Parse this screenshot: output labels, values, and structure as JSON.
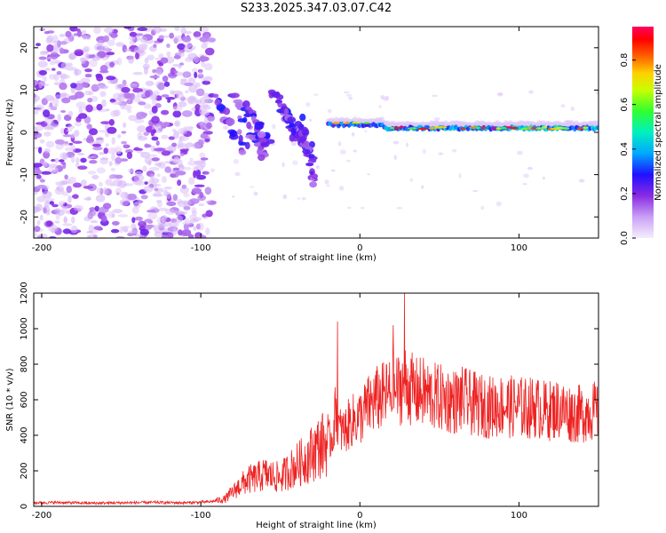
{
  "title": "S233.2025.347.03.07.C42",
  "chart_data": [
    {
      "type": "heatmap",
      "title": "S233.2025.347.03.07.C42",
      "xlabel": "Height of straight line (km)",
      "ylabel": "Frequency (Hz)",
      "xlim": [
        -205,
        150
      ],
      "ylim": [
        -25,
        25
      ],
      "xticks": [
        -200,
        -100,
        0,
        100
      ],
      "yticks": [
        20,
        10,
        0,
        -10,
        -20
      ],
      "colorbar": {
        "label": "Normalized spectral amplitude",
        "range": [
          0.0,
          0.95
        ],
        "ticks": [
          0.0,
          0.2,
          0.4,
          0.6,
          0.8
        ],
        "tick_labels": [
          "0.0",
          "0.2",
          "0.4",
          "0.6",
          "0.8"
        ],
        "colormap": [
          "#ffffff",
          "#d8b8f8",
          "#8a2be2",
          "#3010e0",
          "#0000ff",
          "#00c0ff",
          "#00ff80",
          "#80ff00",
          "#ffff00",
          "#ff8000",
          "#ff0000",
          "#ff0080"
        ]
      },
      "features": [
        {
          "name": "diffuse noise",
          "x_range": [
            -205,
            -93
          ],
          "freq_range": [
            -25,
            25
          ],
          "amplitude": [
            0.0,
            0.15
          ]
        },
        {
          "name": "dispersive arrivals",
          "x_range": [
            -93,
            -25
          ],
          "freq_range": [
            -12,
            10
          ],
          "amplitude": [
            0.1,
            0.3
          ]
        },
        {
          "name": "narrow band signal",
          "x_range": [
            -20,
            150
          ],
          "freq_center": 1,
          "freq_halfwidth": 1,
          "amplitude": [
            0.3,
            0.95
          ]
        }
      ]
    },
    {
      "type": "line",
      "xlabel": "Height of straight line (km)",
      "ylabel": "SNR (10 * v/v)",
      "xlim": [
        -205,
        150
      ],
      "ylim": [
        0,
        1200
      ],
      "xticks": [
        -200,
        -100,
        0,
        100
      ],
      "yticks": [
        0,
        200,
        400,
        600,
        800,
        1000,
        1200
      ],
      "color": "#ee2222",
      "series": [
        {
          "name": "SNR",
          "x": [
            -205,
            -190,
            -170,
            -150,
            -130,
            -110,
            -95,
            -85,
            -80,
            -75,
            -70,
            -65,
            -60,
            -55,
            -50,
            -45,
            -40,
            -35,
            -30,
            -25,
            -20,
            -17,
            -15,
            -13,
            -10,
            -7,
            -5,
            0,
            5,
            10,
            15,
            20,
            25,
            28,
            30,
            35,
            40,
            45,
            50,
            55,
            60,
            65,
            70,
            75,
            80,
            85,
            90,
            95,
            100,
            105,
            110,
            115,
            120,
            125,
            130,
            135,
            140,
            145,
            150
          ],
          "values": [
            20,
            22,
            18,
            20,
            22,
            20,
            25,
            40,
            80,
            120,
            150,
            160,
            180,
            170,
            160,
            200,
            230,
            260,
            300,
            340,
            360,
            400,
            560,
            430,
            420,
            460,
            480,
            500,
            560,
            600,
            620,
            640,
            660,
            700,
            680,
            640,
            640,
            620,
            610,
            600,
            590,
            600,
            580,
            570,
            560,
            560,
            570,
            560,
            560,
            550,
            560,
            540,
            540,
            550,
            530,
            520,
            520,
            540,
            530
          ]
        }
      ],
      "peaks": [
        {
          "x": -14,
          "y": 1040
        },
        {
          "x": 28,
          "y": 1200
        },
        {
          "x": 21,
          "y": 1020
        },
        {
          "x": -28,
          "y": 420
        }
      ]
    }
  ]
}
